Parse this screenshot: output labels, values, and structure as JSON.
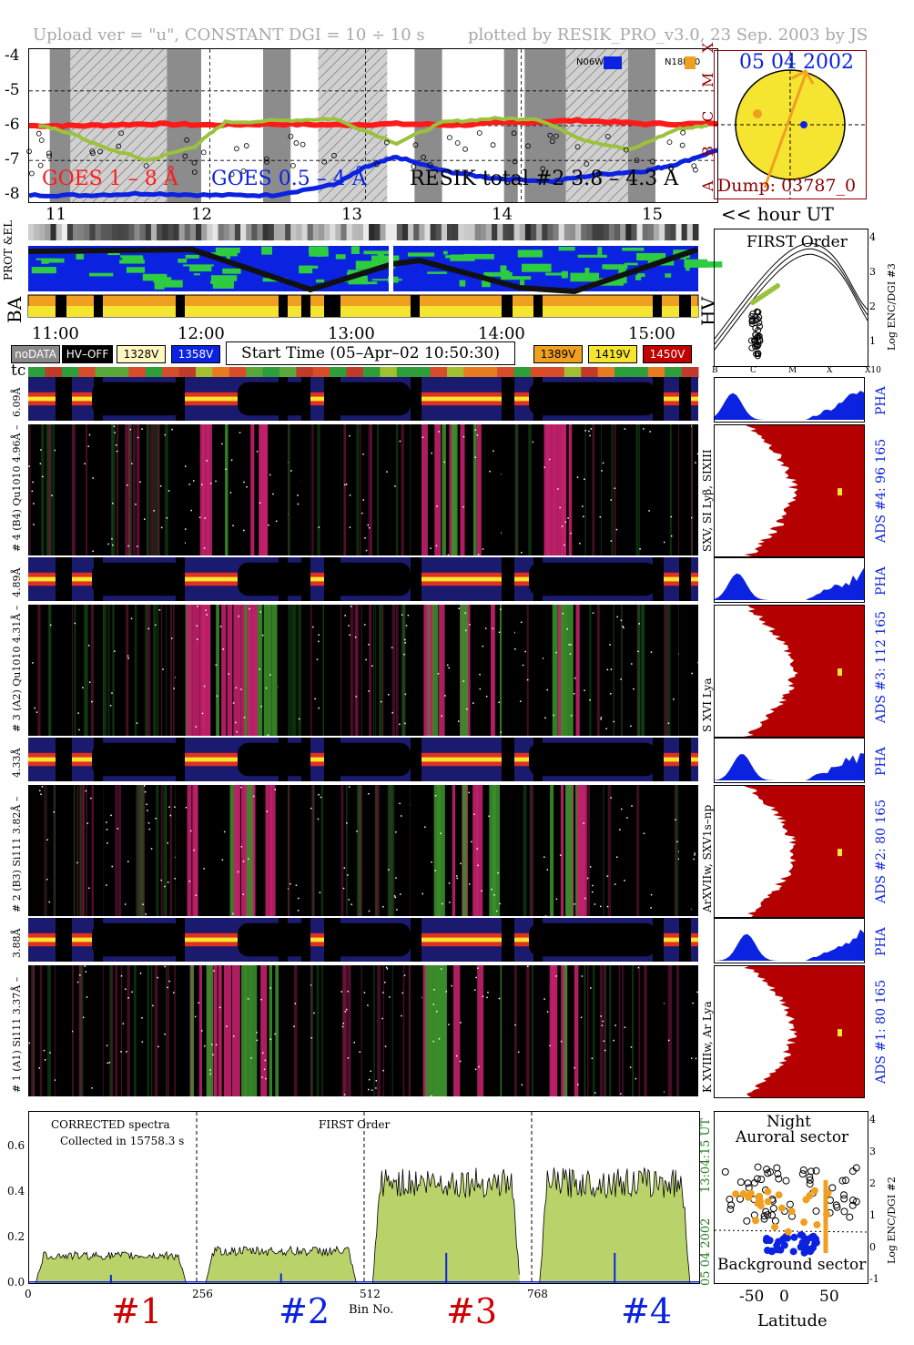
{
  "header": {
    "upload_text": "Upload ver = \"u\", CONSTANT  DGI =  10 ÷  10 s",
    "plotted_text": "plotted by RESIK_PRO_v3.0, 23 Sep. 2003 by JS"
  },
  "colors": {
    "goes_long": "#ff1a1a",
    "goes_short": "#0b22e0",
    "resik": "#9bc23c",
    "sun_fill": "#f5e430",
    "sun_border": "#8b0000",
    "hist_fill": "#b9d36a",
    "ads_red": "#b40000",
    "pha_blue": "#0b22e0",
    "orange": "#f0a020"
  },
  "chart_data": [
    {
      "type": "line",
      "name": "lightcurves",
      "ylim": [
        -8.2,
        -3.8
      ],
      "yticks": [
        "-4",
        "-5",
        "-6",
        "-7",
        "-8"
      ],
      "xlim": [
        10.84,
        15.26
      ],
      "series": [
        {
          "name": "GOES 1 – 8 Å",
          "x": [
            10.84,
            11.2,
            11.6,
            12.0,
            12.4,
            12.8,
            13.2,
            13.6,
            14.0,
            14.4,
            14.8,
            15.26
          ],
          "y": [
            -6.0,
            -6.0,
            -5.95,
            -5.98,
            -5.95,
            -5.98,
            -5.95,
            -5.98,
            -5.9,
            -5.85,
            -5.95,
            -5.95
          ]
        },
        {
          "name": "GOES 0.5 – 4 Å",
          "x": [
            10.84,
            11.2,
            11.6,
            12.0,
            12.4,
            12.8,
            13.0,
            13.2,
            13.5,
            13.8,
            14.2,
            14.5,
            14.8,
            15.0,
            15.26
          ],
          "y": [
            -8.0,
            -8.0,
            -7.95,
            -8.0,
            -8.0,
            -7.7,
            -7.2,
            -6.9,
            -7.3,
            -7.5,
            -7.6,
            -7.4,
            -7.3,
            -7.1,
            -6.7
          ]
        },
        {
          "name": "RESIK total #2  3.8 – 4.3 Å",
          "x": [
            10.9,
            11.1,
            11.3,
            11.6,
            11.9,
            12.1,
            12.5,
            12.8,
            13.2,
            13.5,
            13.8,
            14.1,
            14.4,
            14.7,
            15.0,
            15.2
          ],
          "y": [
            -6.0,
            -6.2,
            -6.6,
            -7.0,
            -6.6,
            -5.9,
            -5.85,
            -5.8,
            -6.5,
            -5.9,
            -5.8,
            -5.8,
            -6.4,
            -6.7,
            -6.1,
            -6.0
          ]
        }
      ],
      "flare_classes": [
        "A",
        "B",
        "C",
        "M",
        "X"
      ],
      "legend": {
        "n": "N06W33",
        "n2": "N18E50"
      },
      "labels": {
        "goes1": "GOES 1 – 8 Å",
        "goes2": "GOES 0.5 – 4 Å",
        "resik": "RESIK total #2  3.8 – 4.3 Å"
      }
    },
    {
      "type": "scatter",
      "name": "sun-disk",
      "date": "05 04 2002",
      "dump": "Dump: 03787_0"
    },
    {
      "type": "bar",
      "name": "spectrum",
      "ylim": [
        0,
        0.75
      ],
      "yticks": [
        "0.0",
        "0.2",
        "0.4",
        "0.6"
      ],
      "xlim": [
        0,
        1024
      ],
      "xticks": [
        "0",
        "256",
        "512",
        "768"
      ],
      "xlabel": "Bin No.",
      "segments": [
        {
          "x0": 10,
          "x1": 240,
          "level": 0.12
        },
        {
          "x0": 270,
          "x1": 500,
          "level": 0.14
        },
        {
          "x0": 525,
          "x1": 750,
          "level": 0.44
        },
        {
          "x0": 780,
          "x1": 1010,
          "level": 0.44
        }
      ],
      "annot1": "CORRECTED spectra",
      "annot2": "Collected in 15758.3 s",
      "annot3": "FIRST Order",
      "side_time": "13:04:15 UT",
      "side_date": "05 04 2002",
      "channels": [
        "#1",
        "#2",
        "#3",
        "#4"
      ]
    }
  ],
  "hour_axis": {
    "ticks": [
      "11",
      "12",
      "13",
      "14",
      "15"
    ],
    "ticks2": [
      "11:00",
      "12:00",
      "13:00",
      "14:00",
      "15:00"
    ],
    "unit": "<< hour UT"
  },
  "labels": {
    "prot_el": "PROT &EL",
    "ba": "BA",
    "hv": "HV",
    "tc": "tc",
    "start_time": "Start Time (05–Apr–02 10:50:30)"
  },
  "status_boxes": [
    "noDATA",
    "HV–OFF",
    "1328V",
    "1358V",
    "1389V",
    "1419V",
    "1450V"
  ],
  "first_order": {
    "title": "FIRST Order",
    "ylabel": "Log ENC/DGI #3",
    "yticks": [
      "1",
      "2",
      "3",
      "4"
    ],
    "xticks": [
      "B",
      "C",
      "M",
      "X",
      "X10"
    ]
  },
  "detectors": [
    {
      "label_top": "6.09Å",
      "left": "# 4 (B4) Qu1010 4.96Å –",
      "pha": "PHA",
      "ads": "ADS #4:   96 165",
      "lines": "SXV, SI Lyβ, SIXIII"
    },
    {
      "label_top": "4.89Å",
      "left": "# 3 (A2) Qu1010  4.31Å –",
      "pha": "PHA",
      "ads": "ADS #3:   112 165",
      "lines": "S XVI Lya"
    },
    {
      "label_top": "4.33Å",
      "left": "# 2 (B3) Si111  3.82Å –",
      "pha": "PHA",
      "ads": "ADS #2:   80 165",
      "lines": "ArXVIIw, SXV1s–np"
    },
    {
      "label_top": "3.88Å",
      "left": "# 1 (A1) Si111  3.37Å –",
      "pha": "PHA",
      "ads": "ADS #1:   80 165",
      "lines": "K XVIIIw, Ar Lya"
    }
  ],
  "latitude_panel": {
    "night": "Night",
    "auroral": "Auroral sector",
    "background": "Background sector",
    "ylabel": "Log ENC/DGI #2",
    "yticks": [
      "-1",
      "0",
      "1",
      "2",
      "3",
      "4"
    ],
    "xticks": [
      "-50",
      "0",
      "50"
    ],
    "xlabel": "Latitude"
  }
}
